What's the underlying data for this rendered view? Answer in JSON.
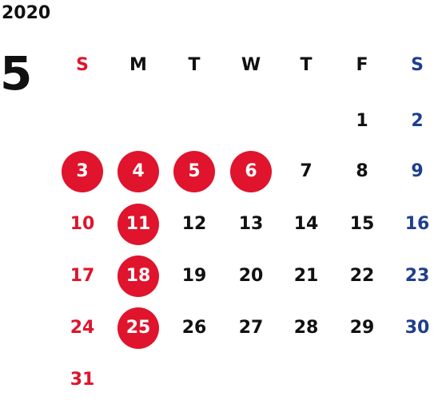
{
  "year": "2020",
  "month": "5",
  "colors": {
    "text": "#111111",
    "sunday": "#e0142c",
    "saturday": "#1f3e8e",
    "holiday_circle": "#e0142c",
    "holiday_text": "#ffffff"
  },
  "weekdays": [
    {
      "label": "S",
      "type": "sunday"
    },
    {
      "label": "M",
      "type": "weekday"
    },
    {
      "label": "T",
      "type": "weekday"
    },
    {
      "label": "W",
      "type": "weekday"
    },
    {
      "label": "T",
      "type": "weekday"
    },
    {
      "label": "F",
      "type": "weekday"
    },
    {
      "label": "S",
      "type": "saturday"
    }
  ],
  "first_weekday_index": 5,
  "days_in_month": 31,
  "holidays": [
    3,
    4,
    5,
    6,
    11,
    18,
    25
  ]
}
